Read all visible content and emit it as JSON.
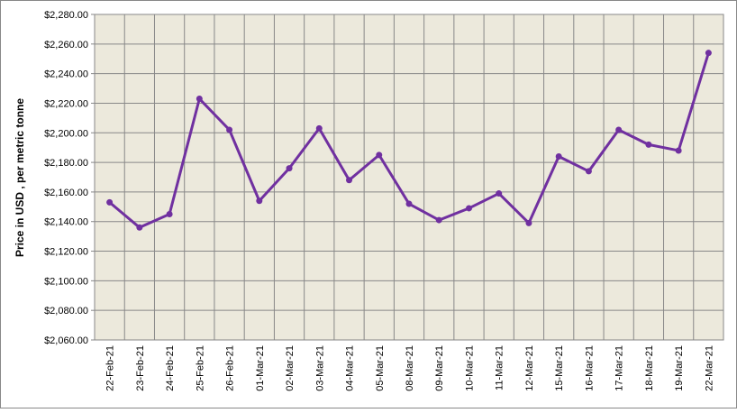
{
  "chart_data": {
    "type": "line",
    "y_label": "Price in USD , per metric tonne",
    "categories": [
      "22-Feb-21",
      "23-Feb-21",
      "24-Feb-21",
      "25-Feb-21",
      "26-Feb-21",
      "01-Mar-21",
      "02-Mar-21",
      "03-Mar-21",
      "04-Mar-21",
      "05-Mar-21",
      "08-Mar-21",
      "09-Mar-21",
      "10-Mar-21",
      "11-Mar-21",
      "12-Mar-21",
      "15-Mar-21",
      "16-Mar-21",
      "17-Mar-21",
      "18-Mar-21",
      "19-Mar-21",
      "22-Mar-21"
    ],
    "series": [
      {
        "color": "#7030a0",
        "values": [
          2153,
          2136,
          2145,
          2223,
          2202,
          2154,
          2176,
          2203,
          2168,
          2185,
          2152,
          2141,
          2149,
          2159,
          2139,
          2184,
          2174,
          2202,
          2192,
          2188,
          2254
        ]
      }
    ],
    "ylim": [
      2060,
      2280
    ],
    "yticks": [
      {
        "value": 2060,
        "label": "$2,060.00"
      },
      {
        "value": 2080,
        "label": "$2,080.00"
      },
      {
        "value": 2100,
        "label": "$2,100.00"
      },
      {
        "value": 2120,
        "label": "$2,120.00"
      },
      {
        "value": 2140,
        "label": "$2,140.00"
      },
      {
        "value": 2160,
        "label": "$2,160.00"
      },
      {
        "value": 2180,
        "label": "$2,180.00"
      },
      {
        "value": 2200,
        "label": "$2,200.00"
      },
      {
        "value": 2220,
        "label": "$2,220.00"
      },
      {
        "value": 2240,
        "label": "$2,240.00"
      },
      {
        "value": 2260,
        "label": "$2,260.00"
      },
      {
        "value": 2280,
        "label": "$2,280.00"
      }
    ],
    "grid": true,
    "background": "#ece9dc"
  }
}
